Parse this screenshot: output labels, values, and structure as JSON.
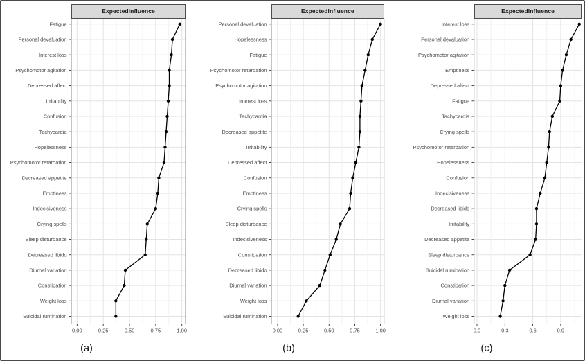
{
  "figure": {
    "background": "#ffffff",
    "border_color": "#4a4a4a"
  },
  "colors": {
    "strip_bg": "#d9d9d9",
    "strip_border": "#4d4d4d",
    "strip_text": "#1a1a1a",
    "panel_bg": "#ffffff",
    "panel_border": "#8a8a8a",
    "grid_major": "#e3e3e3",
    "grid_minor": "#f1f1f1",
    "axis_text": "#4d4d4d",
    "tick_mark": "#333333",
    "series": "#000000",
    "caption_text": "#111111"
  },
  "chart_data": [
    {
      "panel": "a",
      "type": "line",
      "orientation": "horizontal-dot-plot",
      "strip_title": "ExpectedInfluence",
      "caption": "(a)",
      "xlabel": "",
      "ylabel": "",
      "grid": true,
      "legend": false,
      "categories": [
        "Fatigue",
        "Personal devaluation",
        "Interest loss",
        "Psychomotor agitation",
        "Depressed affect",
        "Irritability",
        "Confusion",
        "Tachycardia",
        "Hopelessness",
        "Psychomotor retardation",
        "Decreased appetite",
        "Emptiness",
        "Indecisiveness",
        "Crying spells",
        "Sleep disturbance",
        "Decreased libido",
        "Diurnal variation",
        "Constipation",
        "Weight loss",
        "Suicidal rumination"
      ],
      "values": [
        0.98,
        0.91,
        0.9,
        0.88,
        0.88,
        0.87,
        0.86,
        0.85,
        0.84,
        0.83,
        0.78,
        0.77,
        0.75,
        0.67,
        0.66,
        0.65,
        0.46,
        0.45,
        0.37,
        0.37
      ],
      "x_ticks": [
        0,
        0.25,
        0.5,
        0.75,
        1
      ],
      "x_tick_labels": [
        "0.00",
        "0.25",
        "0.50",
        "0.75",
        "1.00"
      ],
      "x_minor_ticks": [
        0.125,
        0.375,
        0.625,
        0.875
      ],
      "xlim": [
        -0.055,
        1.035
      ]
    },
    {
      "panel": "b",
      "type": "line",
      "orientation": "horizontal-dot-plot",
      "strip_title": "ExpectedInfluence",
      "caption": "(b)",
      "xlabel": "",
      "ylabel": "",
      "grid": true,
      "legend": false,
      "categories": [
        "Personal devaluation",
        "Hopelessness",
        "Fatigue",
        "Psychomotor retardation",
        "Psychomotor agitation",
        "Interest loss",
        "Tachycardia",
        "Decreased appetite",
        "Irritability",
        "Depressed affect",
        "Confusion",
        "Emptiness",
        "Crying spells",
        "Sleep disturbance",
        "Indecisiveness",
        "Constipation",
        "Decreased libido",
        "Diurnal variation",
        "Weight loss",
        "Suicidal rumination"
      ],
      "values": [
        1.0,
        0.92,
        0.88,
        0.85,
        0.82,
        0.81,
        0.8,
        0.8,
        0.79,
        0.76,
        0.73,
        0.71,
        0.7,
        0.61,
        0.57,
        0.51,
        0.46,
        0.41,
        0.28,
        0.2
      ],
      "x_ticks": [
        0,
        0.25,
        0.5,
        0.75,
        1
      ],
      "x_tick_labels": [
        "0.00",
        "0.25",
        "0.50",
        "0.75",
        "1.00"
      ],
      "x_minor_ticks": [
        0.125,
        0.375,
        0.625,
        0.875
      ],
      "xlim": [
        -0.06,
        1.034
      ]
    },
    {
      "panel": "c",
      "type": "line",
      "orientation": "horizontal-dot-plot",
      "strip_title": "ExpectedInfluence",
      "caption": "(c)",
      "xlabel": "",
      "ylabel": "",
      "grid": true,
      "legend": false,
      "categories": [
        "Interest loss",
        "Personal devaluation",
        "Psychomotor agitation",
        "Emptiness",
        "Depressed affect",
        "Fatigue",
        "Tachycardia",
        "Crying spells",
        "Psychomotor retardation",
        "Hopelessness",
        "Confusion",
        "Indecisiveness",
        "Decreased libido",
        "Irritability",
        "Decreased appetite",
        "Sleep disturbance",
        "Suicidal rumination",
        "Constipation",
        "Diurnal variation",
        "Weight loss"
      ],
      "values": [
        1.1,
        1.01,
        0.96,
        0.92,
        0.9,
        0.89,
        0.81,
        0.78,
        0.77,
        0.75,
        0.73,
        0.68,
        0.64,
        0.64,
        0.63,
        0.57,
        0.35,
        0.3,
        0.28,
        0.25
      ],
      "x_ticks": [
        0,
        0.3,
        0.6,
        0.9
      ],
      "x_tick_labels": [
        "0.0",
        "0.3",
        "0.6",
        "0.9"
      ],
      "x_minor_ticks": [
        0.15,
        0.45,
        0.75,
        1.05
      ],
      "xlim": [
        -0.032,
        1.128
      ]
    }
  ]
}
